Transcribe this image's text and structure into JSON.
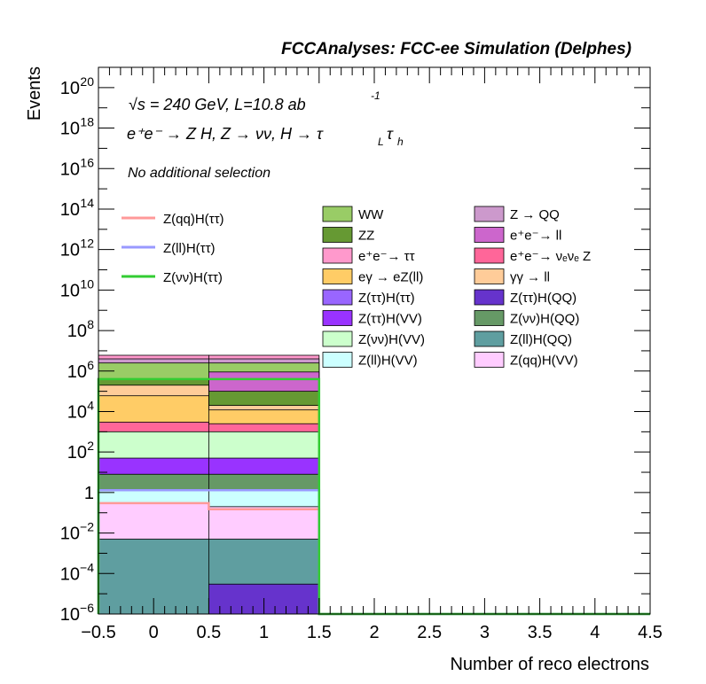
{
  "header": {
    "title": "FCCAnalyses: FCC-ee Simulation (Delphes)"
  },
  "annotations": {
    "energy_lumi": "√s = 240 GeV, L=10.8 ab",
    "lumi_exponent": "-1",
    "process": "e⁺e⁻ → Z H, Z → νν, H → τ",
    "process_sub_L": "L",
    "process_tau_h": "τ",
    "process_sub_h": "h",
    "selection": "No additional selection"
  },
  "chart_data": {
    "type": "bar",
    "stacked": true,
    "log_y": true,
    "xlabel": "Number of reco electrons",
    "ylabel": "Events",
    "xlim": [
      -0.5,
      4.5
    ],
    "ylim_exponent": [
      -6,
      21
    ],
    "bin_edges": [
      -0.5,
      0.5,
      1.5
    ],
    "x_ticks": [
      {
        "v": -0.5,
        "label": "−0.5"
      },
      {
        "v": 0,
        "label": "0"
      },
      {
        "v": 0.5,
        "label": "0.5"
      },
      {
        "v": 1,
        "label": "1"
      },
      {
        "v": 1.5,
        "label": "1.5"
      },
      {
        "v": 2,
        "label": "2"
      },
      {
        "v": 2.5,
        "label": "2.5"
      },
      {
        "v": 3,
        "label": "3"
      },
      {
        "v": 3.5,
        "label": "3.5"
      },
      {
        "v": 4,
        "label": "4"
      },
      {
        "v": 4.5,
        "label": "4.5"
      }
    ],
    "y_ticks": [
      {
        "exp": -6,
        "base": "10",
        "sup": "−6"
      },
      {
        "exp": -4,
        "base": "10",
        "sup": "−4"
      },
      {
        "exp": -2,
        "base": "10",
        "sup": "−2"
      },
      {
        "exp": 0,
        "base": "1",
        "sup": ""
      },
      {
        "exp": 2,
        "base": "10",
        "sup": "2"
      },
      {
        "exp": 4,
        "base": "10",
        "sup": "4"
      },
      {
        "exp": 6,
        "base": "10",
        "sup": "6"
      },
      {
        "exp": 8,
        "base": "10",
        "sup": "8"
      },
      {
        "exp": 10,
        "base": "10",
        "sup": "10"
      },
      {
        "exp": 12,
        "base": "10",
        "sup": "12"
      },
      {
        "exp": 14,
        "base": "10",
        "sup": "14"
      },
      {
        "exp": 16,
        "base": "10",
        "sup": "16"
      },
      {
        "exp": 18,
        "base": "10",
        "sup": "18"
      },
      {
        "exp": 20,
        "base": "10",
        "sup": "20"
      }
    ],
    "stack_cumulative": [
      {
        "name": "Z(ll)H(QQ)",
        "color": "#5f9ea0",
        "values": [
          0.005,
          0.005
        ]
      },
      {
        "name": "Z(qq)H(VV)",
        "color": "#ffccff",
        "values": [
          0.3,
          0.2
        ]
      },
      {
        "name": "Z(ll)H(VV)",
        "color": "#ccffff",
        "values": [
          1.3,
          1.3
        ]
      },
      {
        "name": "Z(νν)H(QQ)",
        "color": "#669966",
        "values": [
          8,
          8
        ]
      },
      {
        "name": "Z(ττ)H(VV)",
        "color": "#9933ff",
        "values": [
          50,
          50
        ]
      },
      {
        "name": "Z(νν)H(VV)",
        "color": "#ccffcc",
        "values": [
          1000,
          1000
        ]
      },
      {
        "name": "e⁺e⁻ → νₑνₑ Z",
        "color": "#ff6699",
        "values": [
          3000,
          2500
        ]
      },
      {
        "name": "eγ → eZ(ll)",
        "color": "#ffcc66",
        "values": [
          60000,
          12000
        ]
      },
      {
        "name": "γγ → ll",
        "color": "#ffcc99",
        "values": [
          200000,
          20000
        ]
      },
      {
        "name": "ZZ",
        "color": "#669933",
        "values": [
          400000,
          100000
        ]
      },
      {
        "name": "e⁺e⁻ → ll",
        "color": "#cc66cc",
        "values": [
          400001,
          900000
        ]
      },
      {
        "name": "WW",
        "color": "#99cc66",
        "values": [
          2500000,
          2500000
        ]
      },
      {
        "name": "Z → QQ",
        "color": "#cc99cc",
        "values": [
          4000000,
          4000000
        ]
      },
      {
        "name": "e⁺e⁻ → ττ",
        "color": "#ff99cc",
        "values": [
          6000000,
          6000000
        ]
      }
    ],
    "bottom_only": {
      "name": "Z(ττ)H(QQ)",
      "color": "#6633cc",
      "values": [
        0,
        3e-05
      ]
    },
    "signal_lines": [
      {
        "name": "Z(qq)H(ττ)",
        "color": "#ff9999",
        "values": [
          0.3,
          0.15
        ]
      },
      {
        "name": "Z(ll)H(ττ)",
        "color": "#9999ff",
        "values": [
          1.3,
          1.3
        ]
      },
      {
        "name": "Z(νν)H(ττ)",
        "color": "#33cc33",
        "values": [
          400000,
          400000
        ]
      }
    ],
    "legend_signals": [
      "Z(qq)H(ττ)",
      "Z(ll)H(ττ)",
      "Z(νν)H(ττ)"
    ],
    "legend_col1": [
      {
        "label": "WW",
        "color": "#99cc66"
      },
      {
        "label": "ZZ",
        "color": "#669933"
      },
      {
        "label": "e⁺e⁻→ ττ",
        "color": "#ff99cc"
      },
      {
        "label": "eγ → eZ(ll)",
        "color": "#ffcc66"
      },
      {
        "label": "Z(ττ)H(ττ)",
        "color": "#9966ff"
      },
      {
        "label": "Z(ττ)H(VV)",
        "color": "#9933ff"
      },
      {
        "label": "Z(νν)H(VV)",
        "color": "#ccffcc"
      },
      {
        "label": "Z(ll)H(VV)",
        "color": "#ccffff"
      }
    ],
    "legend_col2": [
      {
        "label": "Z → QQ",
        "color": "#cc99cc"
      },
      {
        "label": "e⁺e⁻→ ll",
        "color": "#cc66cc"
      },
      {
        "label": "e⁺e⁻→ νₑνₑ Z",
        "color": "#ff6699"
      },
      {
        "label": "γγ → ll",
        "color": "#ffcc99"
      },
      {
        "label": "Z(ττ)H(QQ)",
        "color": "#6633cc"
      },
      {
        "label": "Z(νν)H(QQ)",
        "color": "#669966"
      },
      {
        "label": "Z(ll)H(QQ)",
        "color": "#5f9ea0"
      },
      {
        "label": "Z(qq)H(VV)",
        "color": "#ffccff"
      }
    ]
  }
}
